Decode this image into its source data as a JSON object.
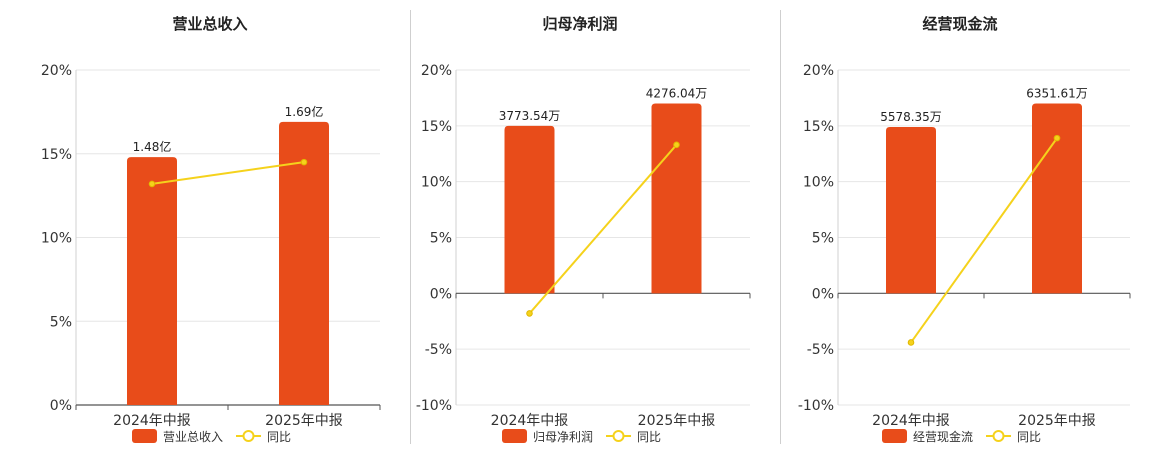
{
  "chart_data": [
    {
      "type": "bar",
      "title": "营业总收入",
      "categories": [
        "2024年中报",
        "2025年中报"
      ],
      "ylim": [
        0,
        20
      ],
      "yticks": [
        0,
        5,
        10,
        15,
        20
      ],
      "ytick_suffix": "%",
      "grid": true,
      "legend_position": "bottom",
      "series": [
        {
          "name": "营业总收入",
          "kind": "bar",
          "values": [
            14.8,
            16.9
          ],
          "labels": [
            "1.48亿",
            "1.69亿"
          ],
          "color": "#e84c1a"
        },
        {
          "name": "同比",
          "kind": "line",
          "values": [
            13.2,
            14.5
          ],
          "color": "#f5d21c"
        }
      ]
    },
    {
      "type": "bar",
      "title": "归母净利润",
      "categories": [
        "2024年中报",
        "2025年中报"
      ],
      "ylim": [
        -10,
        20
      ],
      "yticks": [
        -10,
        -5,
        0,
        5,
        10,
        15,
        20
      ],
      "ytick_suffix": "%",
      "grid": true,
      "legend_position": "bottom",
      "series": [
        {
          "name": "归母净利润",
          "kind": "bar",
          "values": [
            15.0,
            17.0
          ],
          "labels": [
            "3773.54万",
            "4276.04万"
          ],
          "color": "#e84c1a"
        },
        {
          "name": "同比",
          "kind": "line",
          "values": [
            -1.8,
            13.3
          ],
          "color": "#f5d21c"
        }
      ]
    },
    {
      "type": "bar",
      "title": "经营现金流",
      "categories": [
        "2024年中报",
        "2025年中报"
      ],
      "ylim": [
        -10,
        20
      ],
      "yticks": [
        -10,
        -5,
        0,
        5,
        10,
        15,
        20
      ],
      "ytick_suffix": "%",
      "grid": true,
      "legend_position": "bottom",
      "series": [
        {
          "name": "经营现金流",
          "kind": "bar",
          "values": [
            14.9,
            17.0
          ],
          "labels": [
            "5578.35万",
            "6351.61万"
          ],
          "color": "#e84c1a"
        },
        {
          "name": "同比",
          "kind": "line",
          "values": [
            -4.4,
            13.9
          ],
          "color": "#f5d21c"
        }
      ]
    }
  ]
}
